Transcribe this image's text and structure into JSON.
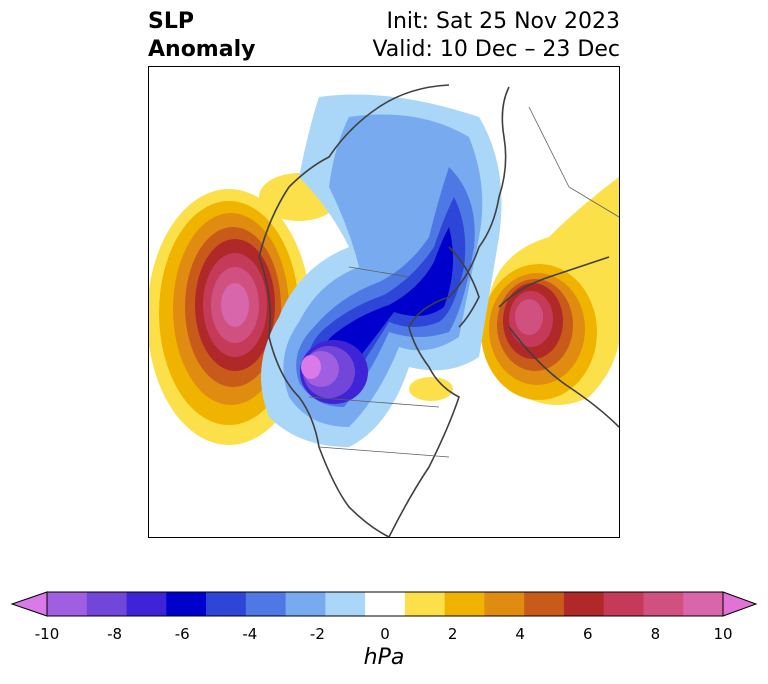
{
  "title": {
    "left_line1": "SLP",
    "left_line2": "Anomaly",
    "right_line1": "Init: Sat 25 Nov 2023",
    "right_line2": "Valid: 10 Dec – 23 Dec"
  },
  "colorbar": {
    "unit": "hPa",
    "ticks": [
      "-10",
      "-8",
      "-6",
      "-4",
      "-2",
      "0",
      "2",
      "4",
      "6",
      "8",
      "10"
    ],
    "colors": [
      "#d97ae8",
      "#a05ee0",
      "#7246d8",
      "#3e24d6",
      "#0000cc",
      "#2e46d8",
      "#4e78e4",
      "#78aaf0",
      "#aad6f8",
      "#ffffff",
      "#fbe04a",
      "#f0b400",
      "#e08c10",
      "#c85a1a",
      "#b02828",
      "#c43a58",
      "#d05080",
      "#d866aa",
      "#e472d6"
    ]
  },
  "map": {
    "projection": "north-polar stereographic",
    "field": "sea level pressure anomaly"
  }
}
